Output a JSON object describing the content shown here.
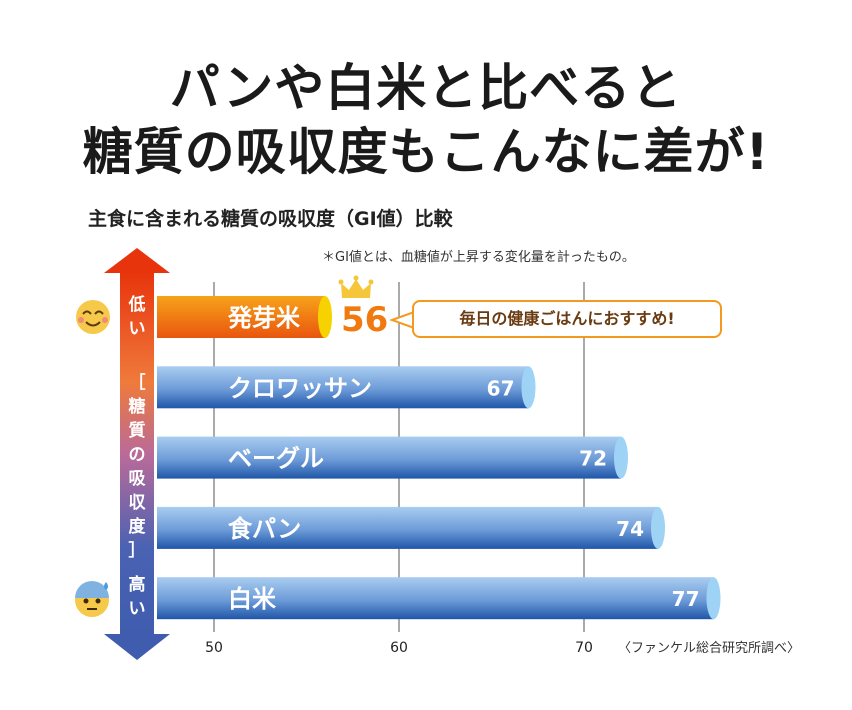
{
  "headline": {
    "line1": "パンや白米と比べると",
    "line2": "糖質の吸収度もこんなに差が!"
  },
  "chart_data": {
    "type": "bar",
    "orientation": "horizontal",
    "title": "主食に含まれる糖質の吸収度（GI値）比較",
    "note": "＊GI値とは、血糖値が上昇する変化量を計ったもの。",
    "source": "〈ファンケル総合研究所調べ〉",
    "categories": [
      "発芽米",
      "クロワッサン",
      "ベーグル",
      "食パン",
      "白米"
    ],
    "values": [
      56,
      67,
      72,
      74,
      77
    ],
    "value_labels": [
      "56",
      "67",
      "72",
      "74",
      "77"
    ],
    "xlim": [
      47,
      80
    ],
    "xticks": [
      50,
      60,
      70
    ],
    "xtick_labels": [
      "50",
      "60",
      "70"
    ],
    "grid": true,
    "highlight_callout": "毎日の健康ごはんにおすすめ!",
    "colors": {
      "highlight": "#f07a10",
      "highlight_value": "#f07a10",
      "bar": "#3f72c0",
      "bar_light": "#a9cdf0",
      "cap": "#9fd3f5",
      "cap_highlight": "#f6d300"
    }
  },
  "axis_arrow": {
    "top_label": "低い",
    "middle_label": "［糖質の吸収度］",
    "bottom_label": "高い"
  },
  "icons": {
    "top": "smiling-face-icon",
    "bottom": "anxious-sweat-face-icon",
    "winner": "crown-icon"
  }
}
